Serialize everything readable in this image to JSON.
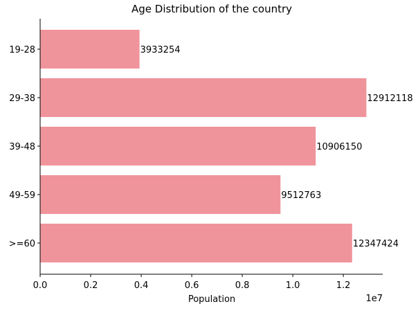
{
  "chart_data": {
    "type": "bar",
    "orientation": "horizontal",
    "title": "Age Distribution of the country",
    "xlabel": "Population",
    "ylabel": "",
    "offset_text": "1e7",
    "categories": [
      "19-28",
      "29-38",
      "39-48",
      "49-59",
      ">=60"
    ],
    "values": [
      3933254,
      12912118,
      10906150,
      9512763,
      12347424
    ],
    "value_labels": [
      "3933254",
      "12912118",
      "10906150",
      "9512763",
      "12347424"
    ],
    "xlim": [
      0,
      13557724
    ],
    "x_ticks": [
      0,
      2000000,
      4000000,
      6000000,
      8000000,
      10000000,
      12000000
    ],
    "x_tick_labels": [
      "0.0",
      "0.2",
      "0.4",
      "0.6",
      "0.8",
      "1.0",
      "1.2"
    ],
    "bar_color": "#f0949c",
    "grid": false,
    "spines": "left-bottom"
  }
}
